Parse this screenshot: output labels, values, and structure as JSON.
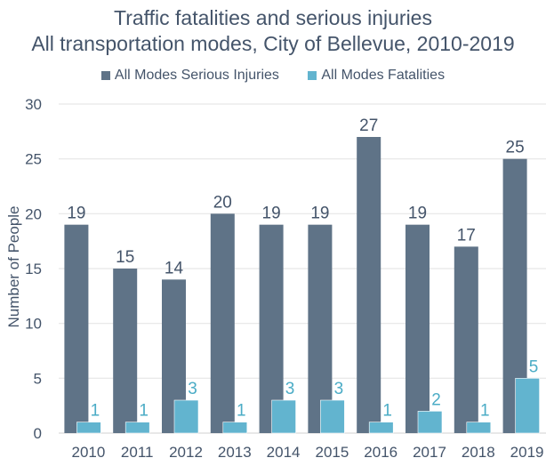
{
  "chart_data": {
    "type": "bar",
    "title": "Traffic fatalities and serious injuries",
    "subtitle": "All transportation modes, City of Bellevue, 2010-2019",
    "xlabel": "",
    "ylabel": "Number of People",
    "ylim": [
      0,
      30
    ],
    "yticks": [
      0,
      5,
      10,
      15,
      20,
      25,
      30
    ],
    "grid": true,
    "legend_position": "top-center",
    "categories": [
      "2010",
      "2011",
      "2012",
      "2013",
      "2014",
      "2015",
      "2016",
      "2017",
      "2018",
      "2019"
    ],
    "series": [
      {
        "name": "All Modes Serious Injuries",
        "color": "#5f7387",
        "label_color": "#44546a",
        "values": [
          19,
          15,
          14,
          20,
          19,
          19,
          27,
          19,
          17,
          25
        ]
      },
      {
        "name": "All Modes Fatalities",
        "color": "#62b4cf",
        "label_color": "#4bacc6",
        "values": [
          1,
          1,
          3,
          1,
          3,
          3,
          1,
          2,
          1,
          5
        ]
      }
    ]
  }
}
